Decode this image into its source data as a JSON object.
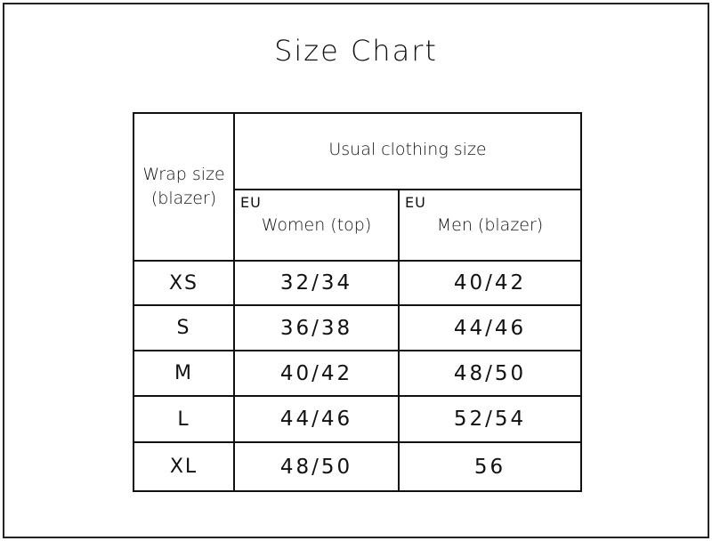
{
  "title": "Size Chart",
  "table": {
    "wrap_header": "Wrap size (blazer)",
    "group_header": "Usual clothing size",
    "columns": [
      {
        "region": "EU",
        "label": "Women (top)"
      },
      {
        "region": "EU",
        "label": "Men (blazer)"
      }
    ],
    "rows": [
      {
        "size": "XS",
        "women": "32/34",
        "men": "40/42"
      },
      {
        "size": "S",
        "women": "36/38",
        "men": "44/46"
      },
      {
        "size": "M",
        "women": "40/42",
        "men": "48/50"
      },
      {
        "size": "L",
        "women": "44/46",
        "men": "52/54"
      },
      {
        "size": "XL",
        "women": "48/50",
        "men": "56"
      }
    ]
  }
}
